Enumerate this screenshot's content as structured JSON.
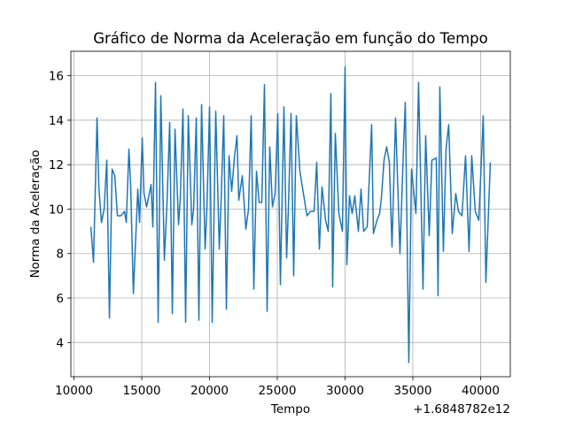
{
  "chart_data": {
    "type": "line",
    "title": "Gráfico de Norma da Aceleração em função do Tempo",
    "x_label": "Tempo",
    "y_label": "Norma da Aceleração",
    "x_offset_label": "+1.6848782e12",
    "x": [
      11242,
      11438,
      11699,
      11830,
      12026,
      12222,
      12418,
      12614,
      12810,
      13007,
      13203,
      13464,
      13726,
      13856,
      14052,
      14183,
      14379,
      14706,
      14837,
      15033,
      15163,
      15360,
      15490,
      15686,
      15817,
      16013,
      16209,
      16405,
      16667,
      16863,
      17059,
      17255,
      17451,
      17712,
      17843,
      18039,
      18235,
      18431,
      18693,
      18824,
      19020,
      19216,
      19412,
      19673,
      19804,
      20000,
      20196,
      20458,
      20719,
      20850,
      21046,
      21242,
      21438,
      21634,
      21830,
      22026,
      22157,
      22418,
      22680,
      22876,
      23072,
      23268,
      23464,
      23660,
      23856,
      24052,
      24248,
      24444,
      24641,
      24837,
      25033,
      25229,
      25490,
      25686,
      25817,
      26013,
      26209,
      26405,
      26667,
      26928,
      27190,
      27451,
      27713,
      27909,
      28105,
      28301,
      28562,
      28758,
      28954,
      29085,
      29281,
      29543,
      29804,
      30000,
      30131,
      30327,
      30523,
      30719,
      30981,
      31177,
      31373,
      31634,
      31961,
      32092,
      32353,
      32549,
      32680,
      32876,
      33072,
      33268,
      33464,
      33726,
      34052,
      34314,
      34445,
      34706,
      34902,
      35229,
      35425,
      35752,
      35948,
      36209,
      36405,
      36732,
      36863,
      36994,
      37255,
      37451,
      37647,
      37909,
      38170,
      38366,
      38628,
      38889,
      39151,
      39347,
      39608,
      39870,
      40196,
      40392,
      40719
    ],
    "series": [
      {
        "name": "Norma",
        "color": "#1f77b4",
        "values": [
          9.2,
          7.6,
          14.1,
          11.0,
          9.4,
          10.0,
          12.2,
          5.1,
          11.8,
          11.5,
          9.7,
          9.7,
          9.9,
          9.4,
          12.7,
          11.0,
          6.2,
          10.9,
          9.4,
          13.2,
          10.7,
          10.1,
          10.5,
          11.1,
          9.2,
          15.7,
          4.9,
          15.1,
          7.7,
          10.3,
          13.9,
          5.3,
          13.6,
          9.3,
          10.5,
          14.5,
          4.9,
          14.2,
          9.3,
          10.0,
          14.1,
          5.0,
          14.7,
          8.2,
          10.0,
          14.6,
          4.9,
          14.4,
          8.2,
          10.3,
          14.2,
          5.5,
          12.4,
          10.8,
          12.3,
          13.3,
          10.4,
          11.5,
          9.1,
          10.0,
          14.2,
          6.4,
          11.7,
          10.3,
          10.3,
          15.6,
          5.4,
          12.8,
          10.1,
          10.7,
          14.3,
          6.6,
          14.6,
          7.8,
          10.0,
          14.3,
          7.0,
          14.2,
          11.7,
          10.7,
          9.7,
          9.9,
          9.9,
          12.1,
          8.2,
          11.0,
          9.5,
          9.0,
          15.2,
          6.5,
          13.4,
          9.8,
          9.0,
          16.4,
          7.5,
          10.6,
          9.8,
          10.6,
          9.0,
          10.9,
          9.0,
          9.2,
          13.8,
          8.9,
          9.5,
          9.8,
          10.5,
          12.2,
          12.8,
          12.1,
          8.3,
          14.1,
          8.0,
          12.8,
          14.8,
          3.1,
          11.8,
          9.8,
          15.7,
          6.4,
          13.3,
          8.8,
          12.2,
          12.3,
          6.1,
          15.5,
          8.1,
          12.7,
          13.8,
          8.9,
          10.7,
          9.9,
          9.7,
          12.4,
          8.1,
          12.4,
          9.9,
          9.5,
          14.2,
          6.7,
          12.1
        ]
      }
    ],
    "xlim": [
      9768,
      42193
    ],
    "xticks": [
      10000,
      15000,
      20000,
      25000,
      30000,
      35000,
      40000
    ],
    "ylim": [
      2.46,
      17.1
    ],
    "yticks": [
      4,
      6,
      8,
      10,
      12,
      14,
      16
    ],
    "grid": true
  }
}
